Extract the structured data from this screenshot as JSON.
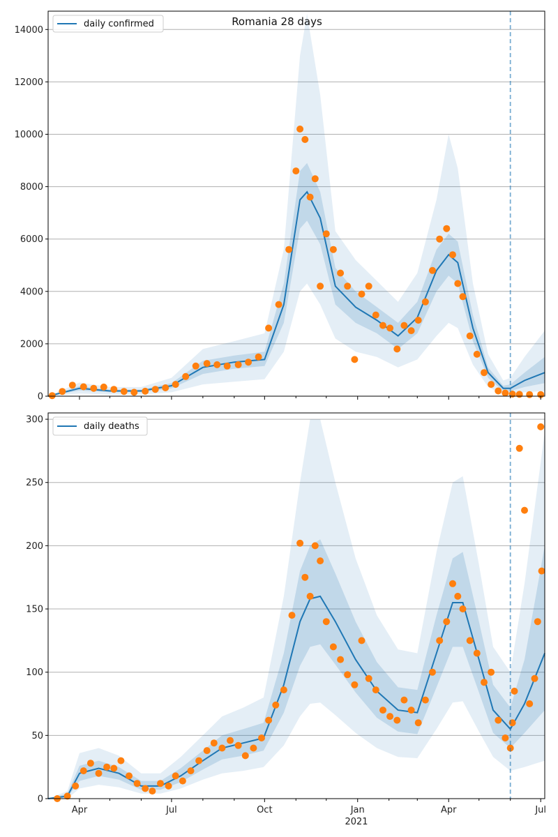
{
  "chart_data": [
    {
      "type": "line",
      "title": "Romania 28 days",
      "legend": {
        "label": "daily confirmed",
        "placement": "top-left"
      },
      "x_ticks": [
        "Apr",
        "Jul",
        "Oct",
        "Jan",
        "Apr",
        "Jul"
      ],
      "x_year_label": "",
      "ylim": [
        0,
        14700
      ],
      "y_ticks": [
        0,
        2000,
        4000,
        6000,
        8000,
        10000,
        12000,
        14000
      ],
      "grid": "y",
      "forecast_start": "2021-06-01",
      "colors": {
        "line": "#1f77b4",
        "points": "#ff7f0e",
        "band": "#1f77b4",
        "vline": "#1f77b4"
      },
      "model_line": {
        "x": [
          "2020-03-01",
          "2020-04-01",
          "2020-05-01",
          "2020-06-01",
          "2020-07-01",
          "2020-08-01",
          "2020-09-01",
          "2020-10-01",
          "2020-10-20",
          "2020-11-05",
          "2020-11-12",
          "2020-11-25",
          "2020-12-10",
          "2020-12-30",
          "2021-01-20",
          "2021-02-10",
          "2021-03-01",
          "2021-03-20",
          "2021-04-01",
          "2021-04-10",
          "2021-04-25",
          "2021-05-10",
          "2021-05-25",
          "2021-06-01",
          "2021-06-15",
          "2021-07-05"
        ],
        "y": [
          0,
          300,
          200,
          200,
          400,
          1100,
          1300,
          1400,
          3500,
          7500,
          7800,
          6800,
          4200,
          3400,
          2900,
          2300,
          3000,
          4800,
          5400,
          5100,
          2600,
          900,
          300,
          300,
          600,
          900
        ]
      },
      "bands": {
        "inner_upper": [
          0,
          380,
          250,
          250,
          500,
          1350,
          1550,
          1700,
          4300,
          8600,
          8900,
          7800,
          4900,
          4000,
          3400,
          2800,
          3600,
          5600,
          6200,
          5900,
          3100,
          1100,
          400,
          450,
          900,
          1500
        ],
        "inner_lower": [
          0,
          220,
          150,
          150,
          300,
          850,
          1050,
          1150,
          2800,
          6400,
          6700,
          5800,
          3500,
          2800,
          2400,
          1800,
          2400,
          4000,
          4600,
          4300,
          2100,
          700,
          200,
          200,
          350,
          500
        ],
        "outer_upper": [
          0,
          520,
          350,
          350,
          700,
          1800,
          2100,
          2400,
          5600,
          13000,
          14600,
          11500,
          6300,
          5200,
          4400,
          3600,
          4700,
          7500,
          10000,
          8700,
          4300,
          1600,
          600,
          700,
          1500,
          2500
        ],
        "outer_lower": [
          0,
          100,
          60,
          60,
          150,
          450,
          550,
          650,
          1700,
          4000,
          4300,
          3500,
          2200,
          1700,
          1500,
          1100,
          1400,
          2300,
          2800,
          2600,
          1200,
          350,
          60,
          80,
          150,
          200
        ]
      },
      "observed": {
        "x": [
          "2020-03-05",
          "2020-03-15",
          "2020-03-25",
          "2020-04-05",
          "2020-04-15",
          "2020-04-25",
          "2020-05-05",
          "2020-05-15",
          "2020-05-25",
          "2020-06-05",
          "2020-06-15",
          "2020-06-25",
          "2020-07-05",
          "2020-07-15",
          "2020-07-25",
          "2020-08-05",
          "2020-08-15",
          "2020-08-25",
          "2020-09-05",
          "2020-09-15",
          "2020-09-25",
          "2020-10-05",
          "2020-10-15",
          "2020-10-25",
          "2020-11-01",
          "2020-11-05",
          "2020-11-10",
          "2020-11-15",
          "2020-11-20",
          "2020-11-25",
          "2020-12-01",
          "2020-12-08",
          "2020-12-15",
          "2020-12-22",
          "2020-12-29",
          "2021-01-05",
          "2021-01-12",
          "2021-01-19",
          "2021-01-26",
          "2021-02-02",
          "2021-02-09",
          "2021-02-16",
          "2021-02-23",
          "2021-03-02",
          "2021-03-09",
          "2021-03-16",
          "2021-03-23",
          "2021-03-30",
          "2021-04-05",
          "2021-04-10",
          "2021-04-15",
          "2021-04-22",
          "2021-04-29",
          "2021-05-06",
          "2021-05-13",
          "2021-05-20",
          "2021-05-27",
          "2021-06-03",
          "2021-06-10",
          "2021-06-20",
          "2021-07-01"
        ],
        "y": [
          20,
          180,
          420,
          360,
          300,
          350,
          260,
          180,
          150,
          190,
          260,
          320,
          450,
          750,
          1150,
          1250,
          1200,
          1150,
          1200,
          1300,
          1500,
          2600,
          3500,
          5600,
          8600,
          10200,
          9800,
          7600,
          8300,
          4200,
          6200,
          5600,
          4700,
          4200,
          1400,
          3900,
          4200,
          3100,
          2700,
          2600,
          1800,
          2700,
          2500,
          2900,
          3600,
          4800,
          6000,
          6400,
          5400,
          4300,
          3800,
          2300,
          1600,
          900,
          450,
          200,
          120,
          80,
          70,
          60,
          60
        ]
      }
    },
    {
      "type": "line",
      "title": "",
      "legend": {
        "label": "daily deaths",
        "placement": "top-left"
      },
      "x_ticks": [
        "Apr",
        "Jul",
        "Oct",
        "Jan",
        "Apr",
        "Jul"
      ],
      "x_year_label": "2021",
      "ylim": [
        0,
        305
      ],
      "y_ticks": [
        0,
        50,
        100,
        150,
        200,
        250,
        300
      ],
      "grid": "y",
      "forecast_start": "2021-06-01",
      "colors": {
        "line": "#1f77b4",
        "points": "#ff7f0e",
        "band": "#1f77b4",
        "vline": "#1f77b4"
      },
      "model_line": {
        "x": [
          "2020-03-01",
          "2020-03-20",
          "2020-04-01",
          "2020-04-20",
          "2020-05-10",
          "2020-06-01",
          "2020-06-20",
          "2020-07-10",
          "2020-08-01",
          "2020-08-20",
          "2020-09-10",
          "2020-09-30",
          "2020-10-20",
          "2020-11-05",
          "2020-11-15",
          "2020-11-25",
          "2020-12-10",
          "2020-12-30",
          "2021-01-20",
          "2021-02-10",
          "2021-03-01",
          "2021-03-20",
          "2021-04-05",
          "2021-04-15",
          "2021-05-01",
          "2021-05-15",
          "2021-06-01",
          "2021-06-15",
          "2021-07-05"
        ],
        "y": [
          0,
          2,
          20,
          24,
          20,
          10,
          10,
          18,
          30,
          40,
          44,
          48,
          90,
          140,
          158,
          160,
          140,
          110,
          85,
          70,
          68,
          115,
          155,
          155,
          110,
          70,
          55,
          75,
          115
        ]
      },
      "bands": {
        "inner_upper": [
          0,
          4,
          26,
          30,
          25,
          14,
          14,
          24,
          38,
          50,
          55,
          60,
          115,
          180,
          200,
          205,
          178,
          140,
          108,
          88,
          86,
          145,
          190,
          195,
          140,
          90,
          72,
          110,
          200
        ],
        "inner_lower": [
          0,
          1,
          14,
          18,
          15,
          7,
          7,
          13,
          23,
          31,
          34,
          38,
          68,
          105,
          120,
          122,
          106,
          84,
          64,
          53,
          51,
          88,
          120,
          120,
          84,
          52,
          40,
          52,
          70
        ],
        "outer_upper": [
          0,
          6,
          36,
          40,
          34,
          20,
          20,
          33,
          50,
          65,
          72,
          80,
          160,
          250,
          300,
          300,
          250,
          190,
          145,
          118,
          115,
          195,
          250,
          255,
          185,
          120,
          100,
          170,
          290
        ],
        "outer_lower": [
          0,
          0,
          8,
          11,
          9,
          4,
          4,
          8,
          15,
          20,
          22,
          25,
          42,
          65,
          75,
          76,
          66,
          52,
          40,
          33,
          32,
          55,
          76,
          77,
          53,
          33,
          22,
          25,
          30
        ]
      },
      "observed": {
        "x": [
          "2020-03-10",
          "2020-03-20",
          "2020-03-28",
          "2020-04-05",
          "2020-04-12",
          "2020-04-20",
          "2020-04-28",
          "2020-05-05",
          "2020-05-12",
          "2020-05-20",
          "2020-05-28",
          "2020-06-05",
          "2020-06-12",
          "2020-06-20",
          "2020-06-28",
          "2020-07-05",
          "2020-07-12",
          "2020-07-20",
          "2020-07-28",
          "2020-08-05",
          "2020-08-12",
          "2020-08-20",
          "2020-08-28",
          "2020-09-05",
          "2020-09-12",
          "2020-09-20",
          "2020-09-28",
          "2020-10-05",
          "2020-10-12",
          "2020-10-20",
          "2020-10-28",
          "2020-11-05",
          "2020-11-10",
          "2020-11-15",
          "2020-11-20",
          "2020-11-25",
          "2020-12-01",
          "2020-12-08",
          "2020-12-15",
          "2020-12-22",
          "2020-12-29",
          "2021-01-05",
          "2021-01-12",
          "2021-01-19",
          "2021-01-26",
          "2021-02-02",
          "2021-02-09",
          "2021-02-16",
          "2021-02-23",
          "2021-03-02",
          "2021-03-09",
          "2021-03-16",
          "2021-03-23",
          "2021-03-30",
          "2021-04-05",
          "2021-04-10",
          "2021-04-15",
          "2021-04-22",
          "2021-04-29",
          "2021-05-06",
          "2021-05-13",
          "2021-05-20",
          "2021-05-27",
          "2021-06-01",
          "2021-06-03",
          "2021-06-05",
          "2021-06-10",
          "2021-06-15",
          "2021-06-20",
          "2021-06-25",
          "2021-06-28",
          "2021-07-01",
          "2021-07-02"
        ],
        "y": [
          0,
          2,
          10,
          22,
          28,
          20,
          25,
          24,
          30,
          18,
          12,
          8,
          6,
          12,
          10,
          18,
          14,
          22,
          30,
          38,
          44,
          40,
          46,
          42,
          34,
          40,
          48,
          62,
          74,
          86,
          145,
          202,
          175,
          160,
          200,
          188,
          140,
          120,
          110,
          98,
          90,
          125,
          95,
          86,
          70,
          65,
          62,
          78,
          70,
          60,
          78,
          100,
          125,
          140,
          170,
          160,
          150,
          125,
          115,
          92,
          100,
          62,
          48,
          40,
          60,
          85,
          277,
          228,
          75,
          95,
          140,
          294,
          180
        ]
      }
    }
  ]
}
